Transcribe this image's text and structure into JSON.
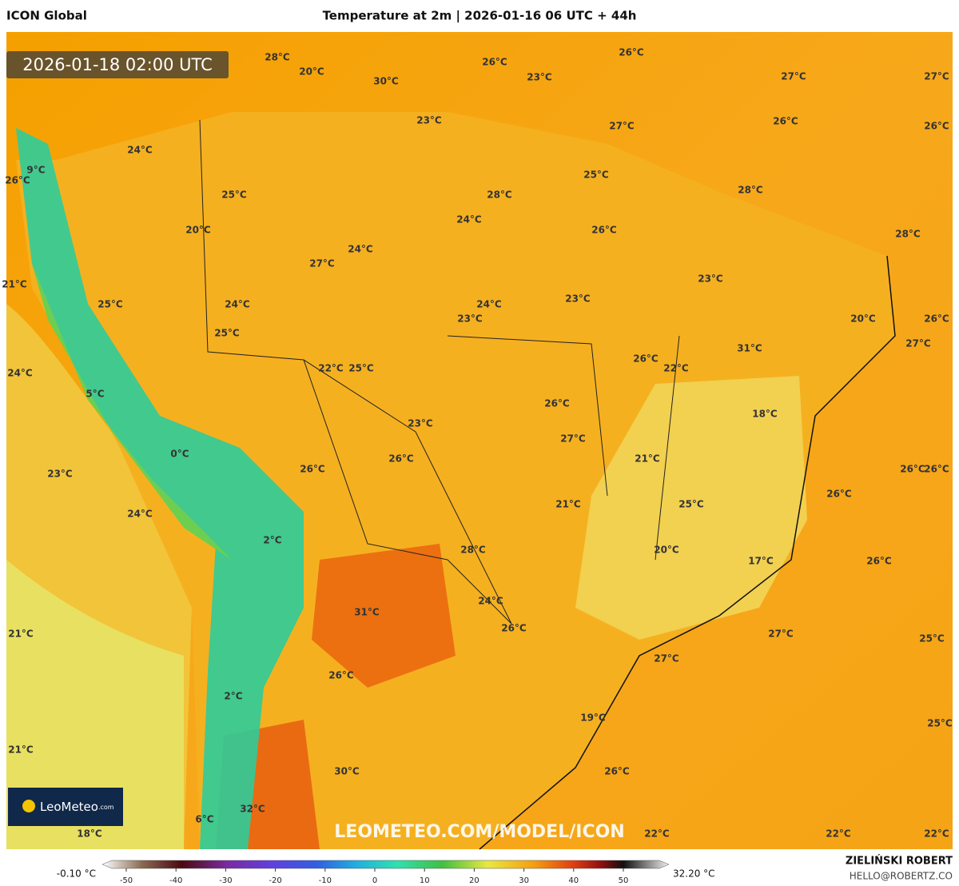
{
  "header": {
    "left": "ICON Global",
    "title": "Temperature at 2m | 2026-01-16 06 UTC + 44h"
  },
  "timestamp": "2026-01-18 02:00 UTC",
  "logo": {
    "name": "LeoMeteo",
    "suffix": ".com"
  },
  "watermark": "LEOMETEO.COM/MODEL/ICON",
  "map_labels": [
    "28°C",
    "20°C",
    "30°C",
    "26°C",
    "23°C",
    "26°C",
    "27°C",
    "27°C",
    "23°C",
    "27°C",
    "26°C",
    "26°C",
    "24°C",
    "9°C",
    "26°C",
    "25°C",
    "25°C",
    "28°C",
    "28°C",
    "24°C",
    "20°C",
    "26°C",
    "28°C",
    "24°C",
    "27°C",
    "23°C",
    "21°C",
    "25°C",
    "24°C",
    "24°C",
    "23°C",
    "23°C",
    "20°C",
    "26°C",
    "25°C",
    "27°C",
    "31°C",
    "26°C",
    "22°C",
    "25°C",
    "22°C",
    "24°C",
    "5°C",
    "26°C",
    "18°C",
    "23°C",
    "27°C",
    "0°C",
    "21°C",
    "26°C",
    "26°C",
    "23°C",
    "26°C",
    "26°C",
    "26°C",
    "21°C",
    "25°C",
    "24°C",
    "2°C",
    "28°C",
    "20°C",
    "17°C",
    "26°C",
    "24°C",
    "31°C",
    "26°C",
    "21°C",
    "27°C",
    "25°C",
    "27°C",
    "26°C",
    "2°C",
    "19°C",
    "25°C",
    "21°C",
    "30°C",
    "26°C",
    "32°C",
    "6°C",
    "18°C",
    "22°C",
    "22°C",
    "22°C"
  ],
  "colorbar": {
    "min_label": "-0.10 °C",
    "max_label": "32.20 °C",
    "ticks": [
      -50,
      -40,
      -30,
      -20,
      -10,
      0,
      10,
      20,
      30,
      40,
      50
    ]
  },
  "footer": {
    "author": "ZIELIŃSKI ROBERT",
    "email": "HELLO@ROBERTZ.CO"
  }
}
